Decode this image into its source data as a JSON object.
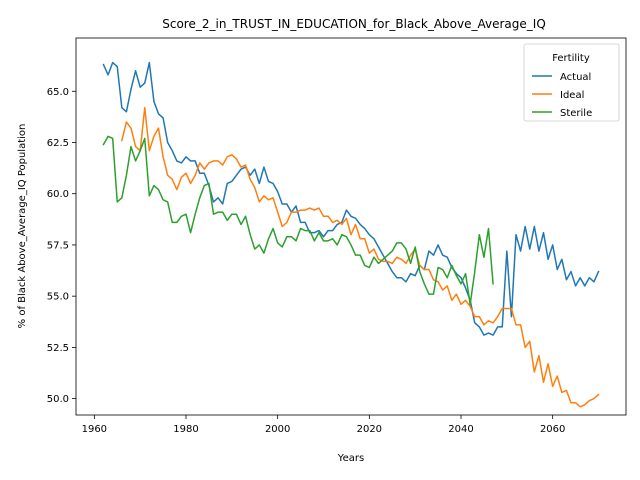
{
  "chart_data": {
    "type": "line",
    "title": "Score_2_in_TRUST_IN_EDUCATION_for_Black_Above_Average_IQ",
    "xlabel": "Years",
    "ylabel": "% of Black Above_Average_IQ Population",
    "xlim": [
      1956,
      2076
    ],
    "ylim": [
      49.2,
      67.6
    ],
    "xticks": [
      1960,
      1980,
      2000,
      2020,
      2040,
      2060
    ],
    "yticks": [
      50.0,
      52.5,
      55.0,
      57.5,
      60.0,
      62.5,
      65.0
    ],
    "xtick_labels": [
      "1960",
      "1980",
      "2000",
      "2020",
      "2040",
      "2060"
    ],
    "ytick_labels": [
      "50.0",
      "52.5",
      "55.0",
      "57.5",
      "60.0",
      "62.5",
      "65.0"
    ],
    "grid": false,
    "legend": {
      "title": "Fertility",
      "position": "top-right"
    },
    "series": [
      {
        "name": "Actual",
        "color": "#1f77b4",
        "x": [
          1962,
          1963,
          1964,
          1965,
          1966,
          1967,
          1968,
          1969,
          1970,
          1971,
          1972,
          1973,
          1974,
          1975,
          1976,
          1977,
          1978,
          1979,
          1980,
          1981,
          1982,
          1983,
          1984,
          1985,
          1986,
          1987,
          1988,
          1989,
          1990,
          1991,
          1992,
          1993,
          1994,
          1995,
          1996,
          1997,
          1998,
          1999,
          2000,
          2001,
          2002,
          2003,
          2004,
          2005,
          2006,
          2007,
          2008,
          2009,
          2010,
          2011,
          2012,
          2013,
          2014,
          2015,
          2016,
          2017,
          2018,
          2019,
          2020,
          2021,
          2022,
          2023,
          2024,
          2025,
          2026,
          2027,
          2028,
          2029,
          2030,
          2031,
          2032,
          2033,
          2034,
          2035,
          2036,
          2037,
          2038,
          2039,
          2040,
          2041,
          2042,
          2043,
          2044,
          2045,
          2046,
          2047,
          2048,
          2049,
          2050,
          2051,
          2052,
          2053,
          2054,
          2055,
          2056,
          2057,
          2058,
          2059,
          2060,
          2061,
          2062,
          2063,
          2064,
          2065,
          2066,
          2067,
          2068,
          2069,
          2070
        ],
        "values": [
          66.3,
          65.8,
          66.4,
          66.2,
          64.2,
          64.0,
          65.1,
          66.0,
          65.2,
          65.4,
          66.4,
          64.5,
          63.9,
          63.7,
          62.5,
          62.1,
          61.6,
          61.5,
          61.8,
          61.6,
          61.6,
          61.0,
          61.0,
          60.4,
          59.6,
          59.8,
          59.5,
          60.5,
          60.6,
          60.9,
          61.2,
          61.3,
          60.9,
          61.2,
          60.5,
          61.3,
          60.6,
          60.5,
          60.1,
          59.5,
          59.5,
          59.1,
          59.4,
          58.6,
          58.6,
          58.1,
          58.1,
          58.2,
          57.9,
          58.2,
          58.2,
          58.5,
          58.6,
          59.2,
          58.9,
          58.8,
          58.5,
          58.3,
          58.0,
          57.8,
          57.4,
          57.0,
          56.6,
          56.2,
          55.9,
          55.9,
          55.7,
          56.1,
          56.0,
          56.5,
          56.3,
          57.2,
          57.0,
          57.5,
          57.0,
          56.9,
          56.4,
          56.1,
          55.9,
          55.4,
          54.8,
          53.7,
          53.5,
          53.1,
          53.2,
          53.1,
          53.5,
          53.5,
          57.2,
          54.0,
          58.0,
          57.2,
          58.4,
          57.3,
          58.4,
          57.2,
          58.1,
          56.8,
          57.5,
          56.3,
          56.8,
          55.8,
          56.2,
          55.5,
          55.9,
          55.5,
          55.9,
          55.7,
          56.2
        ]
      },
      {
        "name": "Ideal",
        "color": "#ff7f0e",
        "x": [
          1966,
          1967,
          1968,
          1969,
          1970,
          1971,
          1972,
          1973,
          1974,
          1975,
          1976,
          1977,
          1978,
          1979,
          1980,
          1981,
          1982,
          1983,
          1984,
          1985,
          1986,
          1987,
          1988,
          1989,
          1990,
          1991,
          1992,
          1993,
          1994,
          1995,
          1996,
          1997,
          1998,
          1999,
          2000,
          2001,
          2002,
          2003,
          2004,
          2005,
          2006,
          2007,
          2008,
          2009,
          2010,
          2011,
          2012,
          2013,
          2014,
          2015,
          2016,
          2017,
          2018,
          2019,
          2020,
          2021,
          2022,
          2023,
          2024,
          2025,
          2026,
          2027,
          2028,
          2029,
          2030,
          2031,
          2032,
          2033,
          2034,
          2035,
          2036,
          2037,
          2038,
          2039,
          2040,
          2041,
          2042,
          2043,
          2044,
          2045,
          2046,
          2047,
          2048,
          2049,
          2050,
          2051,
          2052,
          2053,
          2054,
          2055,
          2056,
          2057,
          2058,
          2059,
          2060,
          2061,
          2062,
          2063,
          2064,
          2065,
          2066,
          2067,
          2068,
          2069,
          2070
        ],
        "values": [
          62.6,
          63.5,
          63.2,
          62.3,
          62.1,
          64.2,
          62.1,
          62.8,
          63.2,
          61.8,
          60.9,
          60.7,
          60.2,
          60.8,
          61.0,
          60.5,
          60.9,
          61.5,
          61.2,
          61.5,
          61.6,
          61.6,
          61.4,
          61.8,
          61.9,
          61.7,
          61.3,
          61.4,
          60.7,
          60.3,
          59.6,
          59.9,
          59.7,
          59.8,
          59.1,
          58.4,
          58.6,
          59.1,
          59.1,
          59.2,
          59.2,
          59.3,
          59.2,
          59.3,
          58.9,
          58.9,
          58.6,
          58.7,
          58.5,
          58.8,
          58.0,
          58.5,
          57.8,
          57.8,
          57.1,
          57.3,
          56.8,
          56.7,
          56.7,
          56.6,
          56.9,
          56.8,
          56.6,
          57.0,
          57.3,
          56.5,
          56.3,
          56.3,
          55.8,
          55.7,
          55.3,
          55.5,
          54.8,
          55.1,
          54.6,
          54.8,
          54.5,
          54.0,
          54.0,
          53.6,
          53.8,
          53.7,
          54.0,
          54.4,
          54.4,
          54.4,
          53.6,
          53.6,
          52.5,
          52.8,
          51.3,
          52.1,
          50.8,
          51.7,
          50.6,
          51.1,
          50.3,
          50.4,
          49.8,
          49.8,
          49.6,
          49.7,
          49.9,
          50.0,
          50.2
        ]
      },
      {
        "name": "Sterile",
        "color": "#2ca02c",
        "x": [
          1962,
          1963,
          1964,
          1965,
          1966,
          1967,
          1968,
          1969,
          1970,
          1971,
          1972,
          1973,
          1974,
          1975,
          1976,
          1977,
          1978,
          1979,
          1980,
          1981,
          1982,
          1983,
          1984,
          1985,
          1986,
          1987,
          1988,
          1989,
          1990,
          1991,
          1992,
          1993,
          1994,
          1995,
          1996,
          1997,
          1998,
          1999,
          2000,
          2001,
          2002,
          2003,
          2004,
          2005,
          2006,
          2007,
          2008,
          2009,
          2010,
          2011,
          2012,
          2013,
          2014,
          2015,
          2016,
          2017,
          2018,
          2019,
          2020,
          2021,
          2022,
          2023,
          2024,
          2025,
          2026,
          2027,
          2028,
          2029,
          2030,
          2031,
          2032,
          2033,
          2034,
          2035,
          2036,
          2037,
          2038,
          2039,
          2040,
          2041,
          2042,
          2043,
          2044,
          2045,
          2046,
          2047
        ],
        "values": [
          62.4,
          62.8,
          62.7,
          59.6,
          59.8,
          60.9,
          62.3,
          61.6,
          62.1,
          62.7,
          59.9,
          60.4,
          60.2,
          59.7,
          59.6,
          58.6,
          58.6,
          58.9,
          59.0,
          58.1,
          59.0,
          59.8,
          60.4,
          60.5,
          59.0,
          59.1,
          59.1,
          58.7,
          59.0,
          59.0,
          58.5,
          58.9,
          58.0,
          57.3,
          57.5,
          57.1,
          57.8,
          58.3,
          57.6,
          57.4,
          57.9,
          57.9,
          57.7,
          58.3,
          58.2,
          58.2,
          57.7,
          58.1,
          57.7,
          57.7,
          57.8,
          57.5,
          58.0,
          57.9,
          57.5,
          57.0,
          57.0,
          56.5,
          56.4,
          56.9,
          56.6,
          56.8,
          57.0,
          57.2,
          57.6,
          57.6,
          57.3,
          56.6,
          57.4,
          56.2,
          55.6,
          55.1,
          55.1,
          56.4,
          56.3,
          55.9,
          56.5,
          56.0,
          55.6,
          56.1,
          54.6,
          56.2,
          58.0,
          56.9,
          58.3,
          55.6
        ]
      }
    ]
  }
}
